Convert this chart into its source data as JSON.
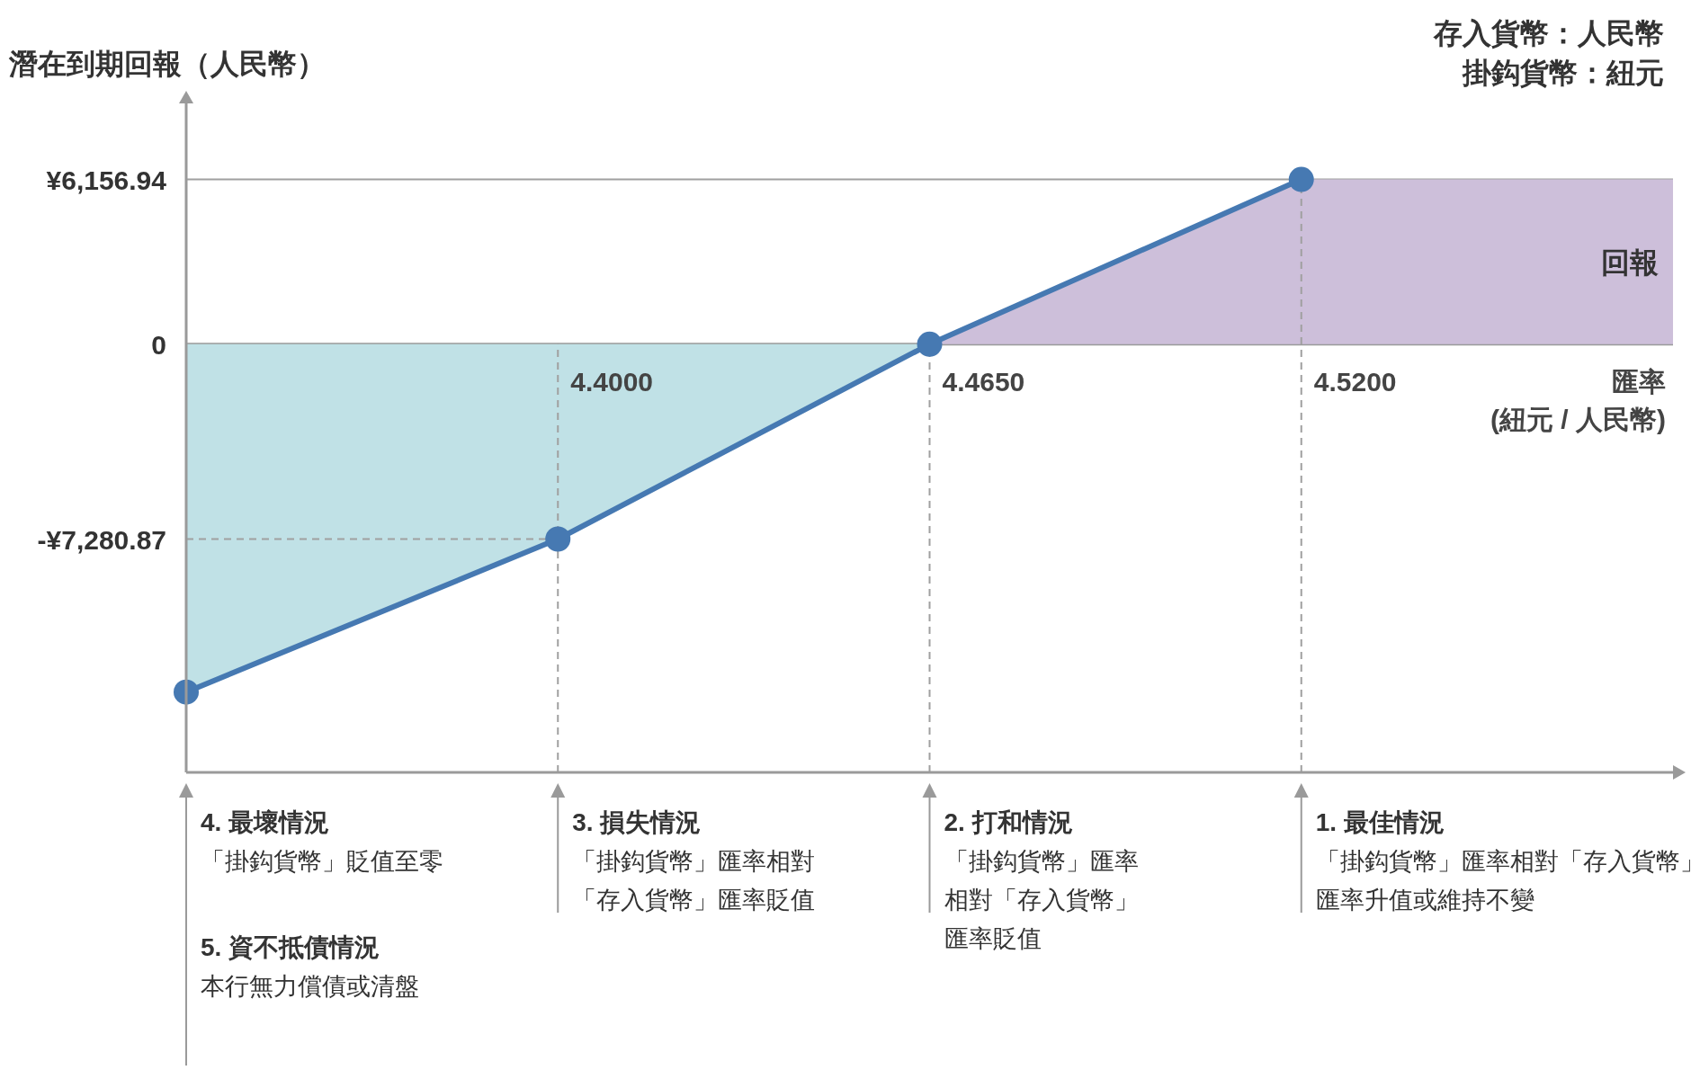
{
  "chart_data": {
    "type": "area",
    "ylabel": "潛在到期回報（人民幣）",
    "xlabel": "匯率\n(紐元 / 人民幣)",
    "categories": [
      null,
      "4.4000",
      "4.4650",
      "4.5200",
      null
    ],
    "series": [
      {
        "color": "#c0e1e6",
        "values": [
          -13000,
          -7280.87,
          0,
          null,
          null
        ]
      },
      {
        "name": "回報",
        "color": "#cdbfda",
        "values": [
          null,
          null,
          0,
          6156.94,
          6156.94
        ]
      },
      {
        "type": "scatter",
        "marker": "circle",
        "color": "#4679b2",
        "values": [
          -13000,
          -7280.87,
          0,
          6156.94,
          null
        ]
      }
    ],
    "line_style": "solid",
    "ylim": [
      -16000,
      9000
    ],
    "yticks": [
      {
        "value": 6156.94,
        "label": "¥6,156.94"
      },
      {
        "value": 0,
        "label": "0"
      },
      {
        "value": -7280.87,
        "label": "-¥7,280.87"
      }
    ],
    "ref_lines": [
      {
        "axis": "y",
        "value": 6156.94,
        "color": "#a0a0a0",
        "line_style": "solid"
      },
      {
        "axis": "y",
        "value": -7280.87,
        "color": "#a0a0a0",
        "line_style": "dashed"
      },
      {
        "axis": "x",
        "value": "4.4000",
        "color": "#a0a0a0",
        "line_style": "dashed"
      },
      {
        "axis": "x",
        "value": "4.4650",
        "color": "#a0a0a0",
        "line_style": "dashed"
      },
      {
        "axis": "x",
        "value": "4.5200",
        "color": "#a0a0a0",
        "line_style": "dashed"
      }
    ],
    "annotations": [
      "存入貨幣：人民幣",
      "掛鈎貨幣：紐元",
      "4. 最壞情況",
      "「掛鈎貨幣」貶值至零",
      "5. 資不抵債情況",
      "本行無力償債或清盤",
      "3. 損失情況",
      "「掛鈎貨幣」匯率相對「存入貨幣」匯率貶值",
      "2. 打和情況",
      "「掛鈎貨幣」匯率相對「存入貨幣」匯率貶值",
      "1. 最佳情況",
      "「掛鈎貨幣」匯率相對「存入貨幣」匯率升值或維持不變"
    ]
  }
}
